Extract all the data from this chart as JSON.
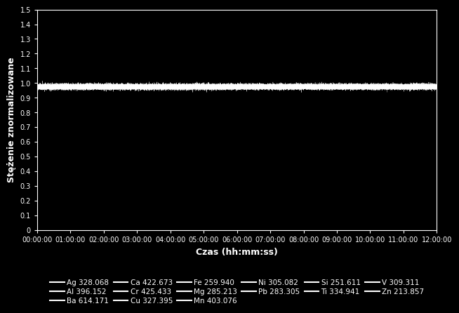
{
  "title": "",
  "ylabel": "Stężenie znormalizowane",
  "xlabel": "Czas (hh:mm:ss)",
  "background_color": "#000000",
  "text_color": "#ffffff",
  "ylim": [
    0,
    1.5
  ],
  "yticks": [
    0,
    0.1,
    0.2,
    0.3,
    0.4,
    0.5,
    0.6,
    0.7,
    0.8,
    0.9,
    1.0,
    1.1,
    1.2,
    1.3,
    1.4,
    1.5
  ],
  "ytick_labels": [
    "0",
    "0.1",
    "0.2",
    "0.3",
    "0.4",
    "0.5",
    "0.6",
    "0.7",
    "0.8",
    "0.9",
    "1.0",
    "1.1",
    "1.2",
    "1.3",
    "1.4",
    "1.5"
  ],
  "xlim_seconds": [
    0,
    43200
  ],
  "xticks_seconds": [
    0,
    3600,
    7200,
    10800,
    14400,
    18000,
    21600,
    25200,
    28800,
    32400,
    36000,
    39600,
    43200
  ],
  "xtick_labels": [
    "00:00:00",
    "01:00:00",
    "02:00:00",
    "03:00:00",
    "04:00:00",
    "05:00:00",
    "06:00:00",
    "07:00:00",
    "08:00:00",
    "09:00:00",
    "10:00:00",
    "11:00:00",
    "12:00:00"
  ],
  "n_points": 5000,
  "signal_mean": 0.975,
  "signal_std": 0.008,
  "n_series": 15,
  "line_color": "#ffffff",
  "legend_entries": [
    "Ag 328.068",
    "Al 396.152",
    "Ba 614.171",
    "Ca 422.673",
    "Cr 425.433",
    "Cu 327.395",
    "Fe 259.940",
    "Mg 285.213",
    "Mn 403.076",
    "Ni 305.082",
    "Pb 283.305",
    "Si 251.611",
    "Ti 334.941",
    "V 309.311",
    "Zn 213.857"
  ],
  "figsize": [
    6.47,
    4.55
  ],
  "dpi": 100,
  "legend_ncol": 6,
  "tick_fontsize": 7,
  "label_fontsize": 9,
  "legend_fontsize": 7.5
}
